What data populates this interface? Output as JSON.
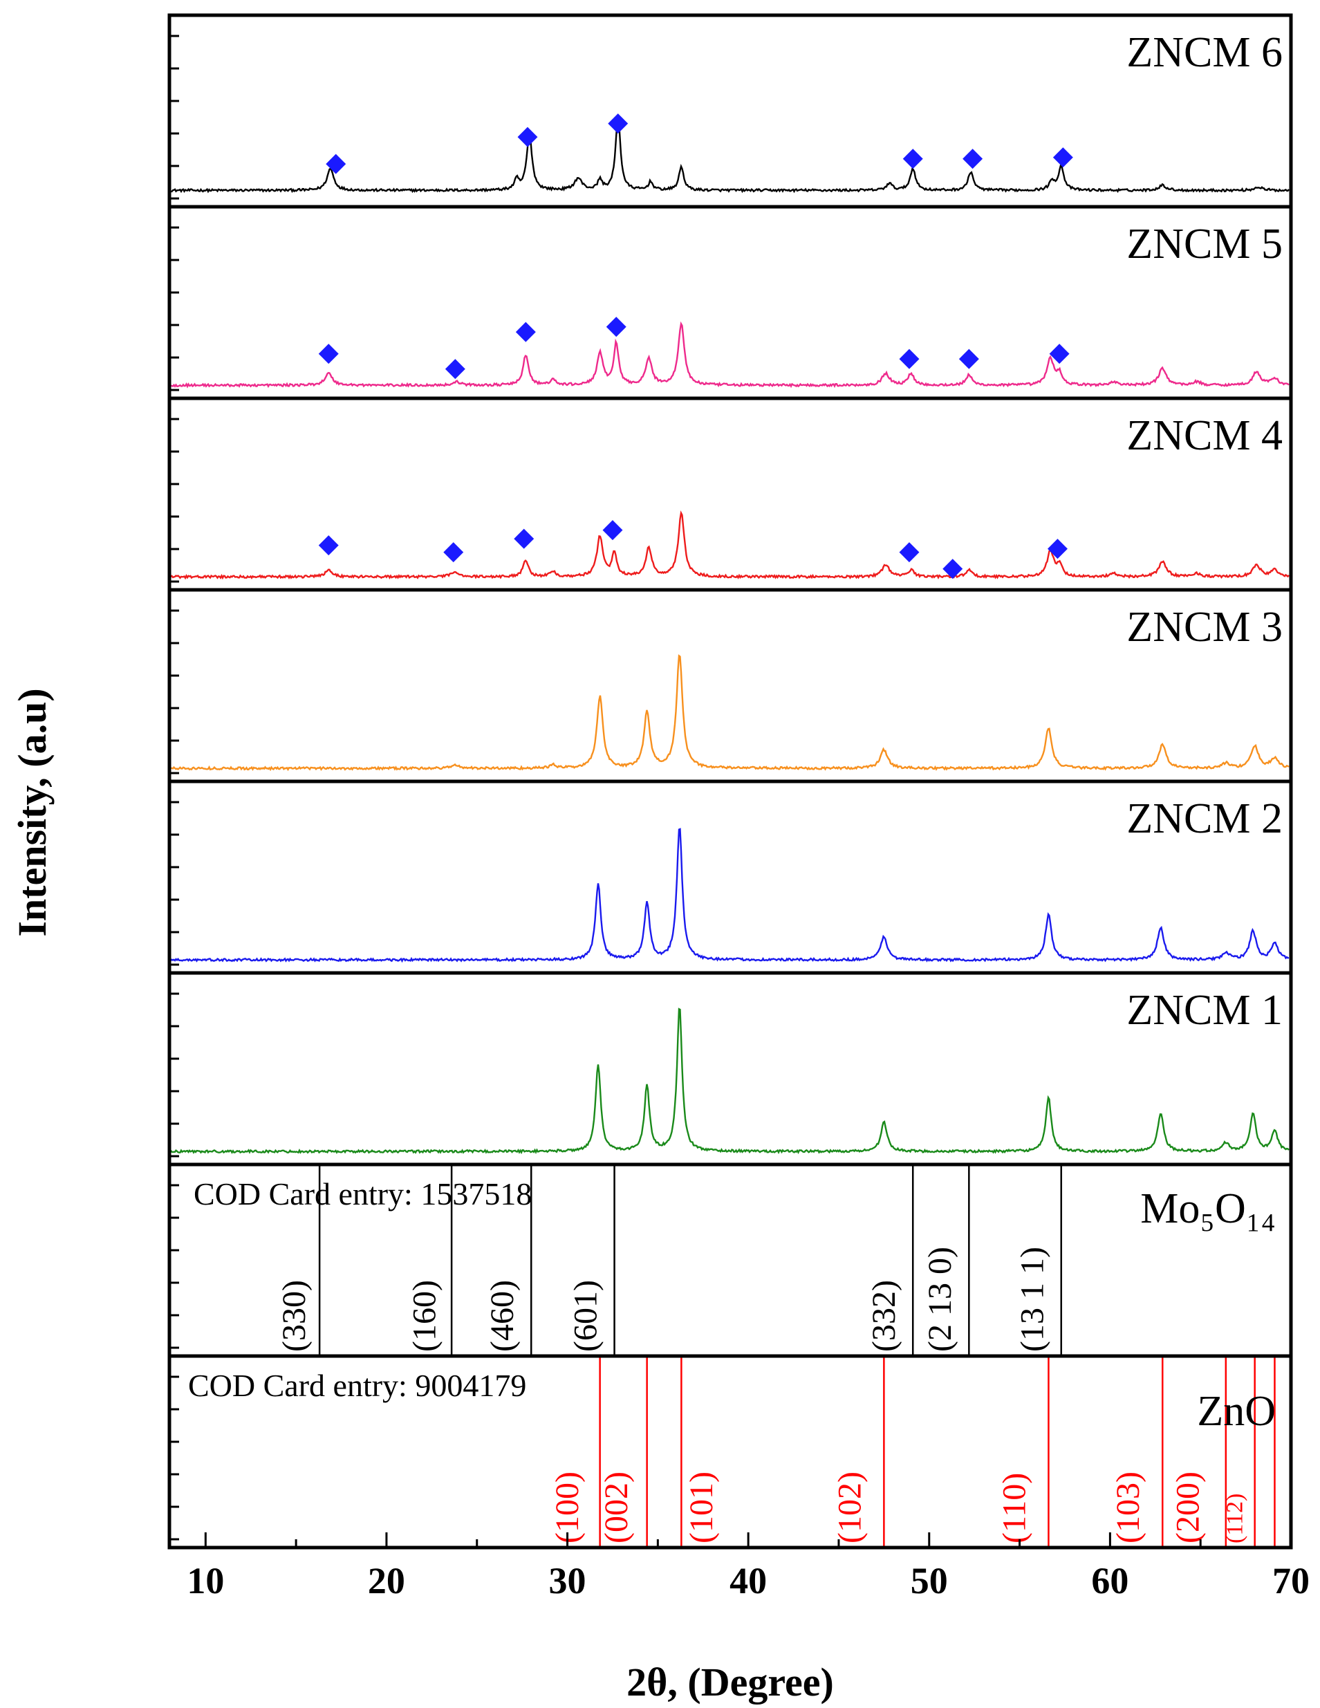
{
  "chart_data": {
    "type": "line",
    "title": "",
    "xlabel": "2θ, (Degree)",
    "ylabel": "Intensity, (a.u)",
    "xlim": [
      8,
      70
    ],
    "xticks": [
      10,
      20,
      30,
      40,
      50,
      60,
      70
    ],
    "grid": false,
    "marker_symbol": "◆",
    "marker_color": "#1a1aff",
    "series": [
      {
        "name": "ZNCM 6",
        "color": "#000000",
        "baseline": 0.04,
        "peaks": [
          [
            16.9,
            0.13,
            0.22
          ],
          [
            27.9,
            0.33,
            0.18
          ],
          [
            27.2,
            0.06,
            0.15
          ],
          [
            30.6,
            0.07,
            0.25
          ],
          [
            31.8,
            0.06,
            0.15
          ],
          [
            32.8,
            0.44,
            0.16
          ],
          [
            34.6,
            0.05,
            0.15
          ],
          [
            36.3,
            0.14,
            0.16
          ],
          [
            47.8,
            0.04,
            0.2
          ],
          [
            49.1,
            0.13,
            0.18
          ],
          [
            52.3,
            0.11,
            0.18
          ],
          [
            56.8,
            0.05,
            0.2
          ],
          [
            57.3,
            0.14,
            0.18
          ],
          [
            62.9,
            0.03,
            0.25
          ],
          [
            68.2,
            0.02,
            0.25
          ]
        ],
        "markers": [
          [
            17.2,
            0.21
          ],
          [
            27.8,
            0.37
          ],
          [
            32.8,
            0.45
          ],
          [
            49.1,
            0.24
          ],
          [
            52.4,
            0.24
          ],
          [
            57.4,
            0.25
          ]
        ]
      },
      {
        "name": "ZNCM 5",
        "color": "#ee2a8c",
        "baseline": 0.02,
        "peaks": [
          [
            16.8,
            0.07,
            0.25
          ],
          [
            23.9,
            0.02,
            0.25
          ],
          [
            27.7,
            0.18,
            0.18
          ],
          [
            29.2,
            0.03,
            0.2
          ],
          [
            31.8,
            0.19,
            0.2
          ],
          [
            32.7,
            0.25,
            0.16
          ],
          [
            34.5,
            0.16,
            0.2
          ],
          [
            36.3,
            0.37,
            0.2
          ],
          [
            47.6,
            0.07,
            0.25
          ],
          [
            49.0,
            0.07,
            0.2
          ],
          [
            52.2,
            0.06,
            0.2
          ],
          [
            56.7,
            0.16,
            0.22
          ],
          [
            57.2,
            0.07,
            0.18
          ],
          [
            60.2,
            0.02,
            0.25
          ],
          [
            62.9,
            0.1,
            0.25
          ],
          [
            64.8,
            0.02,
            0.25
          ],
          [
            68.1,
            0.08,
            0.25
          ],
          [
            69.1,
            0.04,
            0.25
          ]
        ],
        "markers": [
          [
            16.8,
            0.22
          ],
          [
            23.8,
            0.13
          ],
          [
            27.7,
            0.35
          ],
          [
            32.7,
            0.38
          ],
          [
            48.9,
            0.19
          ],
          [
            52.2,
            0.19
          ],
          [
            57.2,
            0.22
          ]
        ]
      },
      {
        "name": "ZNCM 4",
        "color": "#ee1c1c",
        "baseline": 0.02,
        "peaks": [
          [
            16.8,
            0.04,
            0.25
          ],
          [
            23.8,
            0.03,
            0.25
          ],
          [
            27.7,
            0.1,
            0.18
          ],
          [
            29.2,
            0.03,
            0.2
          ],
          [
            31.8,
            0.24,
            0.2
          ],
          [
            32.6,
            0.14,
            0.16
          ],
          [
            34.5,
            0.17,
            0.2
          ],
          [
            36.3,
            0.38,
            0.2
          ],
          [
            47.6,
            0.07,
            0.25
          ],
          [
            49.0,
            0.04,
            0.2
          ],
          [
            52.2,
            0.04,
            0.2
          ],
          [
            56.7,
            0.15,
            0.22
          ],
          [
            57.2,
            0.07,
            0.18
          ],
          [
            60.2,
            0.02,
            0.25
          ],
          [
            62.9,
            0.09,
            0.25
          ],
          [
            64.8,
            0.02,
            0.25
          ],
          [
            68.1,
            0.07,
            0.25
          ],
          [
            69.1,
            0.04,
            0.25
          ]
        ],
        "markers": [
          [
            16.8,
            0.22
          ],
          [
            23.7,
            0.18
          ],
          [
            27.6,
            0.26
          ],
          [
            32.5,
            0.31
          ],
          [
            48.9,
            0.18
          ],
          [
            51.3,
            0.08
          ],
          [
            57.1,
            0.2
          ]
        ]
      },
      {
        "name": "ZNCM 3",
        "color": "#f7901e",
        "baseline": 0.02,
        "peaks": [
          [
            23.8,
            0.02,
            0.25
          ],
          [
            29.2,
            0.02,
            0.2
          ],
          [
            31.8,
            0.43,
            0.2
          ],
          [
            34.4,
            0.33,
            0.2
          ],
          [
            36.2,
            0.68,
            0.2
          ],
          [
            47.5,
            0.11,
            0.25
          ],
          [
            56.6,
            0.24,
            0.22
          ],
          [
            62.9,
            0.14,
            0.25
          ],
          [
            66.4,
            0.03,
            0.25
          ],
          [
            68.0,
            0.13,
            0.25
          ],
          [
            69.1,
            0.06,
            0.25
          ]
        ],
        "markers": []
      },
      {
        "name": "ZNCM 2",
        "color": "#1a1aee",
        "baseline": 0.02,
        "peaks": [
          [
            31.7,
            0.45,
            0.18
          ],
          [
            34.4,
            0.34,
            0.18
          ],
          [
            36.2,
            0.79,
            0.18
          ],
          [
            47.5,
            0.14,
            0.22
          ],
          [
            56.6,
            0.27,
            0.2
          ],
          [
            62.8,
            0.19,
            0.22
          ],
          [
            66.4,
            0.04,
            0.25
          ],
          [
            67.9,
            0.17,
            0.22
          ],
          [
            69.1,
            0.1,
            0.22
          ]
        ],
        "markers": []
      },
      {
        "name": "ZNCM 1",
        "color": "#1a8a1a",
        "baseline": 0.02,
        "peaks": [
          [
            31.7,
            0.52,
            0.17
          ],
          [
            34.4,
            0.39,
            0.17
          ],
          [
            36.2,
            0.86,
            0.17
          ],
          [
            47.5,
            0.18,
            0.2
          ],
          [
            56.6,
            0.32,
            0.18
          ],
          [
            62.8,
            0.23,
            0.2
          ],
          [
            66.4,
            0.05,
            0.22
          ],
          [
            67.9,
            0.22,
            0.2
          ],
          [
            69.1,
            0.12,
            0.2
          ]
        ],
        "markers": []
      }
    ],
    "references": [
      {
        "name": "Mo₅O₁₄",
        "card": "COD Card entry: 1537518",
        "color": "#000000",
        "lines": [
          16.3,
          23.6,
          28.0,
          32.6,
          49.1,
          52.2,
          57.3
        ],
        "hkl": [
          {
            "label": "(330)",
            "x": 15.5
          },
          {
            "label": "(160)",
            "x": 22.7
          },
          {
            "label": "(460)",
            "x": 27.0
          },
          {
            "label": "(601)",
            "x": 31.6
          },
          {
            "label": "(332)",
            "x": 48.1
          },
          {
            "label": "(2 13 0)",
            "x": 51.2
          },
          {
            "label": "(13 1 1)",
            "x": 56.3
          }
        ]
      },
      {
        "name": "ZnO",
        "card": "COD Card entry: 9004179",
        "color": "#ff0000",
        "lines": [
          31.8,
          34.4,
          36.3,
          47.5,
          56.6,
          62.9,
          66.4,
          68.0,
          69.1
        ],
        "hkl": [
          {
            "label": "(100)",
            "x": 30.6
          },
          {
            "label": "(002)",
            "x": 33.3
          },
          {
            "label": "(101)",
            "x": 38.0
          },
          {
            "label": "(102)",
            "x": 46.2
          },
          {
            "label": "(110)",
            "x": 55.3
          },
          {
            "label": "(103)",
            "x": 61.6
          },
          {
            "label": "(200)",
            "x": 64.9
          },
          {
            "label": "(112)",
            "x": 67.3
          }
        ]
      }
    ]
  }
}
